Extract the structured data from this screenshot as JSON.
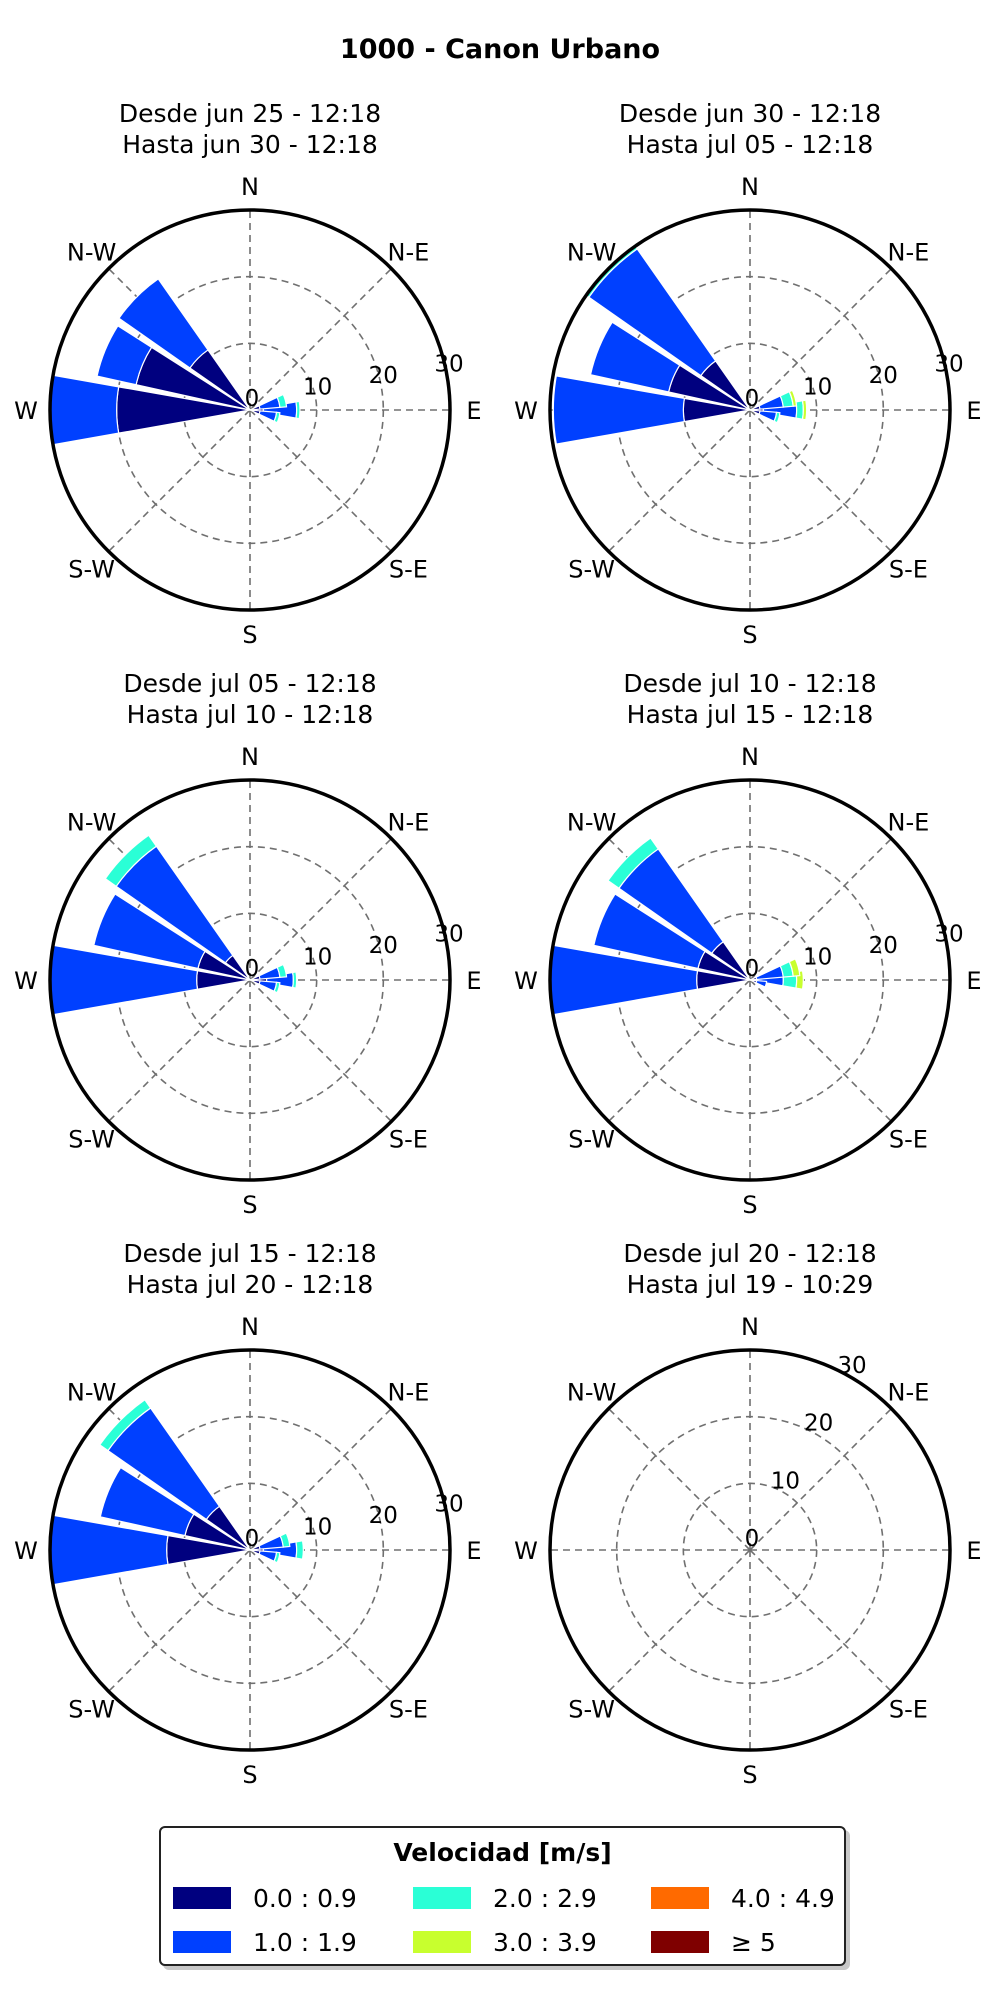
{
  "title": "1000 - Canon Urbano",
  "colors": [
    "#00007f",
    "#0040ff",
    "#2affd6",
    "#c8ff2e",
    "#ff6a00",
    "#7f0000"
  ],
  "legend": {
    "title": "Velocidad [m/s]",
    "items": [
      {
        "label": "0.0 : 0.9",
        "color": "#00007f"
      },
      {
        "label": "2.0 : 2.9",
        "color": "#2affd6"
      },
      {
        "label": "4.0 : 4.9",
        "color": "#ff6a00"
      },
      {
        "label": "1.0 : 1.9",
        "color": "#0040ff"
      },
      {
        "label": "3.0 : 3.9",
        "color": "#c8ff2e"
      },
      {
        "label": "≥ 5",
        "color": "#7f0000"
      }
    ]
  },
  "chart_data": [
    {
      "type": "windrose",
      "title_lines": [
        "Desde jun 25 - 12:18",
        "Hasta jun 30 - 12:18"
      ],
      "directions": [
        "N",
        "N-E",
        "E",
        "S-E",
        "S",
        "S-W",
        "W",
        "N-W"
      ],
      "rmax": 30,
      "rings": [
        0,
        10,
        20,
        30
      ],
      "ring_label_angle": 80,
      "sectors": [
        {
          "angle": 270,
          "stack": [
            20,
            10
          ]
        },
        {
          "angle": 292.5,
          "stack": [
            17.5,
            6
          ]
        },
        {
          "angle": 315,
          "stack": [
            11,
            13
          ]
        },
        {
          "angle": 90,
          "stack": [
            2,
            5,
            0.5
          ]
        },
        {
          "angle": 75,
          "stack": [
            1.5,
            3,
            1
          ]
        },
        {
          "angle": 105,
          "stack": [
            1.5,
            2.5,
            0.5
          ]
        }
      ]
    },
    {
      "type": "windrose",
      "title_lines": [
        "Desde jun 30 - 12:18",
        "Hasta jul 05 - 12:18"
      ],
      "directions": [
        "N",
        "N-E",
        "E",
        "S-E",
        "S",
        "S-W",
        "W",
        "N-W"
      ],
      "rmax": 30,
      "rings": [
        0,
        10,
        20,
        30
      ],
      "ring_label_angle": 80,
      "sectors": [
        {
          "angle": 270,
          "stack": [
            10,
            19.5
          ]
        },
        {
          "angle": 292.5,
          "stack": [
            12.5,
            12
          ]
        },
        {
          "angle": 315,
          "stack": [
            9,
            20.5,
            0.5
          ]
        },
        {
          "angle": 90,
          "stack": [
            2,
            5,
            1,
            0.5
          ]
        },
        {
          "angle": 75,
          "stack": [
            1.5,
            3.5,
            1.5,
            0.5
          ]
        },
        {
          "angle": 105,
          "stack": [
            1.5,
            2.5,
            0.5
          ]
        }
      ]
    },
    {
      "type": "windrose",
      "title_lines": [
        "Desde jul 05 - 12:18",
        "Hasta jul 10 - 12:18"
      ],
      "directions": [
        "N",
        "N-E",
        "E",
        "S-E",
        "S",
        "S-W",
        "W",
        "N-W"
      ],
      "rmax": 30,
      "rings": [
        0,
        10,
        20,
        30
      ],
      "ring_label_angle": 80,
      "sectors": [
        {
          "angle": 270,
          "stack": [
            8,
            22
          ]
        },
        {
          "angle": 292.5,
          "stack": [
            8,
            16
          ]
        },
        {
          "angle": 315,
          "stack": [
            4.5,
            20,
            2
          ]
        },
        {
          "angle": 90,
          "stack": [
            2.5,
            4,
            0.5
          ]
        },
        {
          "angle": 75,
          "stack": [
            1.5,
            3,
            1
          ]
        },
        {
          "angle": 105,
          "stack": [
            1.5,
            2.5,
            0.5
          ]
        }
      ]
    },
    {
      "type": "windrose",
      "title_lines": [
        "Desde jul 10 - 12:18",
        "Hasta jul 15 - 12:18"
      ],
      "directions": [
        "N",
        "N-E",
        "E",
        "S-E",
        "S",
        "S-W",
        "W",
        "N-W"
      ],
      "rmax": 30,
      "rings": [
        0,
        10,
        20,
        30
      ],
      "ring_label_angle": 80,
      "sectors": [
        {
          "angle": 270,
          "stack": [
            8,
            22
          ]
        },
        {
          "angle": 292.5,
          "stack": [
            8,
            16
          ]
        },
        {
          "angle": 315,
          "stack": [
            7,
            17,
            2
          ]
        },
        {
          "angle": 90,
          "stack": [
            1,
            4,
            2,
            1
          ]
        },
        {
          "angle": 75,
          "stack": [
            1,
            4,
            1.5,
            1
          ]
        },
        {
          "angle": 105,
          "stack": [
            1,
            1.5
          ]
        }
      ]
    },
    {
      "type": "windrose",
      "title_lines": [
        "Desde jul 15 - 12:18",
        "Hasta jul 20 - 12:18"
      ],
      "directions": [
        "N",
        "N-E",
        "E",
        "S-E",
        "S",
        "S-W",
        "W",
        "N-W"
      ],
      "rmax": 30,
      "rings": [
        0,
        10,
        20,
        30
      ],
      "ring_label_angle": 80,
      "sectors": [
        {
          "angle": 270,
          "stack": [
            12.5,
            17.5
          ]
        },
        {
          "angle": 292.5,
          "stack": [
            10,
            13
          ]
        },
        {
          "angle": 315,
          "stack": [
            8,
            18,
            1.5
          ]
        },
        {
          "angle": 90,
          "stack": [
            2,
            5,
            1
          ]
        },
        {
          "angle": 75,
          "stack": [
            1.5,
            3.5,
            1
          ]
        },
        {
          "angle": 105,
          "stack": [
            1.5,
            2.5,
            0.5
          ]
        }
      ]
    },
    {
      "type": "windrose",
      "title_lines": [
        "Desde jul 20 - 12:18",
        "Hasta jul 19 - 10:29"
      ],
      "directions": [
        "N",
        "N-E",
        "E",
        "S-E",
        "S",
        "S-W",
        "W",
        "N-W"
      ],
      "rmax": 30,
      "rings": [
        0,
        10,
        20,
        30
      ],
      "ring_label_angle": 30,
      "sectors": []
    }
  ]
}
